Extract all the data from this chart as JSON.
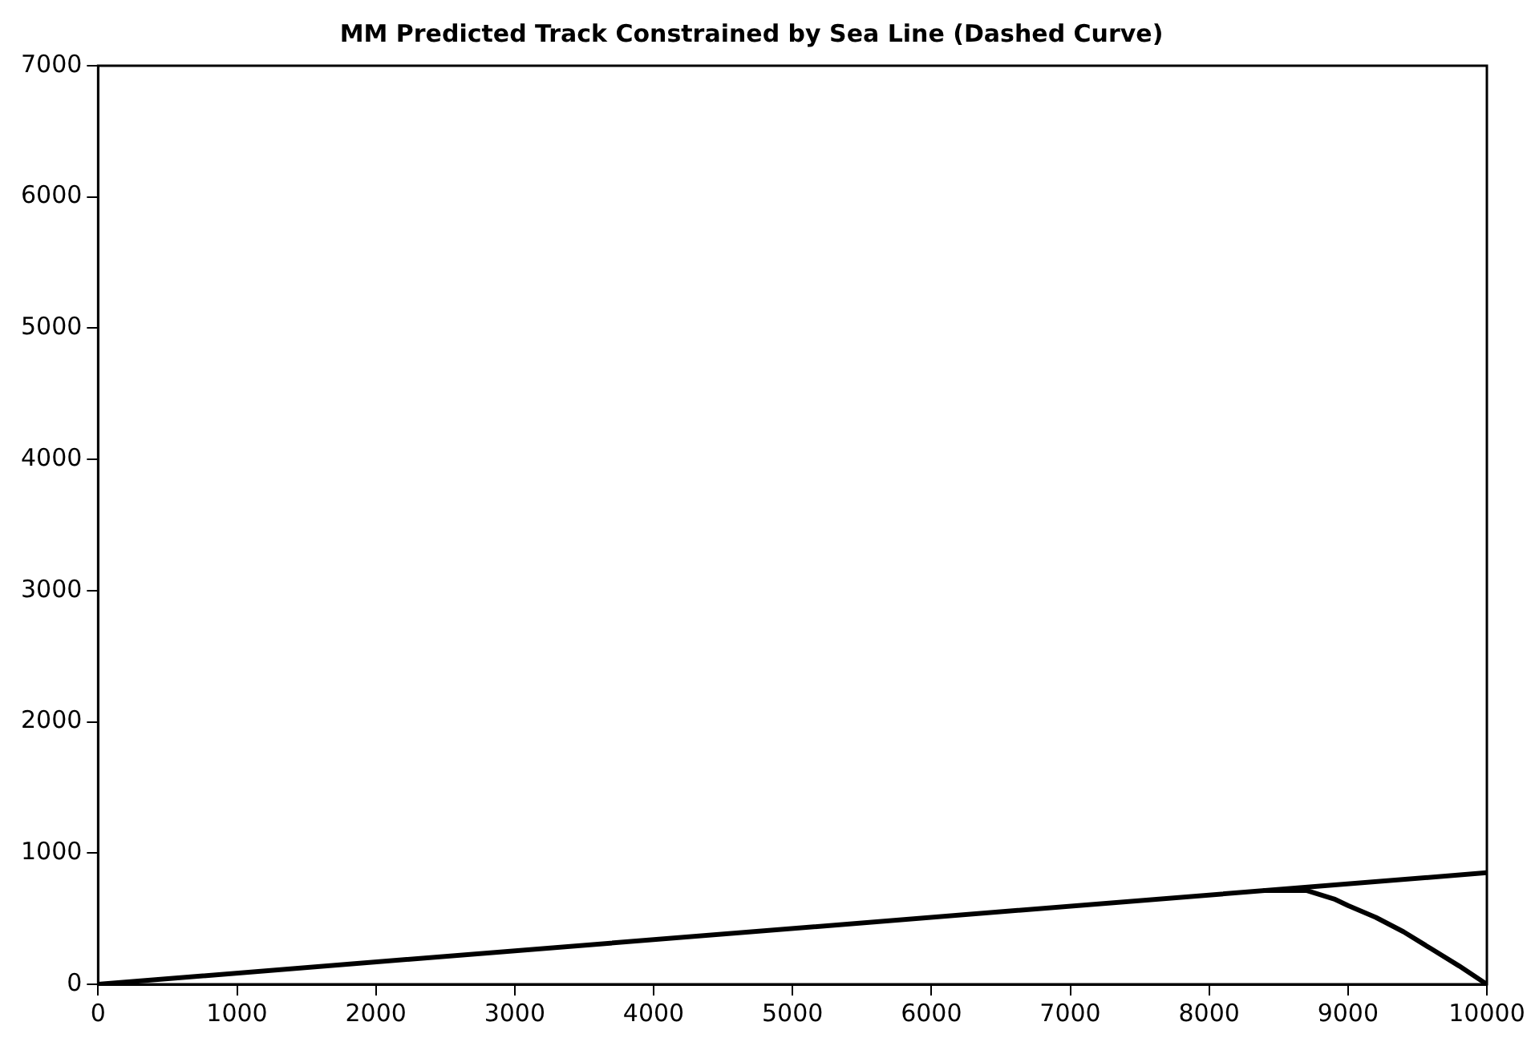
{
  "chart_data": {
    "type": "line",
    "title": "MM Predicted Track Constrained by Sea Line (Dashed Curve)",
    "xlim": [
      0,
      10000
    ],
    "xticks": [
      0,
      1000,
      2000,
      3000,
      4000,
      5000,
      6000,
      7000,
      8000,
      9000,
      10000
    ],
    "ylim": [
      0,
      7000
    ],
    "yticks": [
      0,
      1000,
      2000,
      3000,
      4000,
      5000,
      6000,
      7000
    ],
    "grid": false,
    "legend": false,
    "marker": "none",
    "line_style": "solid",
    "series": [
      {
        "color": "#000000",
        "x": [
          0,
          10000
        ],
        "values": [
          0,
          850
        ]
      },
      {
        "color": "#000000",
        "x": [
          8400,
          8700,
          8900,
          9000,
          9200,
          9400,
          9600,
          9800,
          10000
        ],
        "values": [
          714,
          715,
          650,
          600,
          510,
          400,
          270,
          140,
          0
        ]
      }
    ]
  }
}
